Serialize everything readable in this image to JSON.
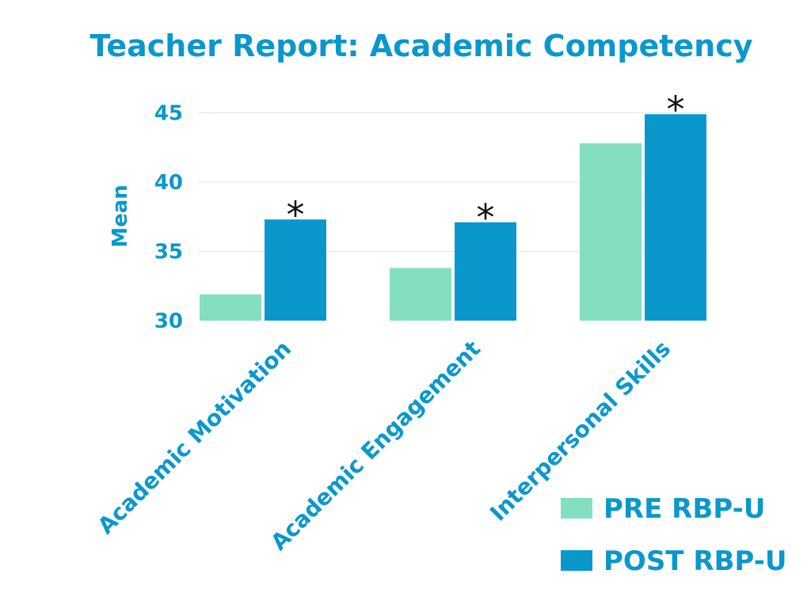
{
  "chart_data": {
    "type": "bar",
    "title": "Teacher Report: Academic Competency",
    "xlabel": "",
    "ylabel": "Mean",
    "ylim": [
      30,
      46
    ],
    "yticks": [
      30,
      35,
      40,
      45
    ],
    "categories": [
      "Academic Motivation",
      "Academic Engagement",
      "Interpersonal Skills"
    ],
    "series": [
      {
        "name": "PRE RBP-U",
        "values": [
          31.9,
          33.8,
          42.8
        ],
        "color": "#84dfc0"
      },
      {
        "name": "POST RBP-U",
        "values": [
          37.3,
          37.1,
          44.9
        ],
        "color": "#0a98cc"
      }
    ],
    "significance_marker": "*",
    "significant": [
      true,
      true,
      true
    ],
    "grid": true,
    "legend_position": "bottom-right",
    "accent_color": "#0a98cc",
    "text_color": "#0a98cc",
    "grid_color": "#dce9ef"
  }
}
